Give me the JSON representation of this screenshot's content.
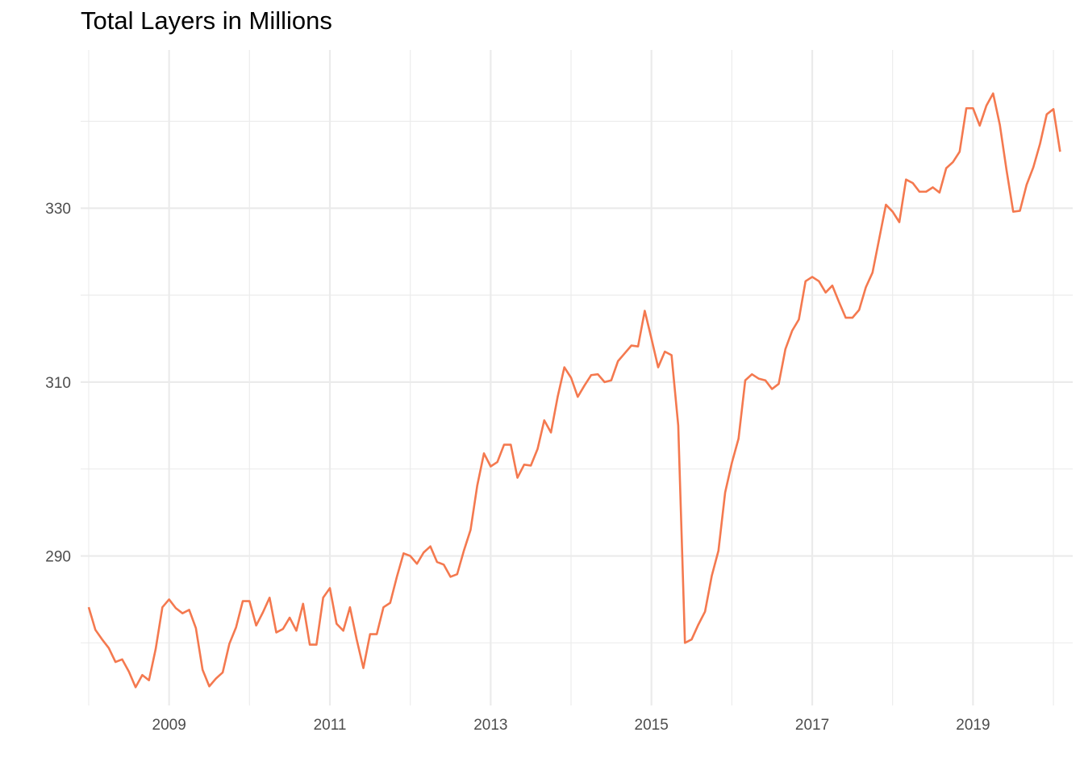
{
  "chart_data": {
    "type": "line",
    "title": "Total Layers in Millions",
    "xlabel": "",
    "ylabel": "",
    "x_start": "2008-01",
    "x_step": "month",
    "xlim": [
      2007.9,
      2020.24
    ],
    "ylim": [
      272.8,
      348.2
    ],
    "x_ticks": [
      {
        "value": 2009,
        "label": "2009"
      },
      {
        "value": 2011,
        "label": "2011"
      },
      {
        "value": 2013,
        "label": "2013"
      },
      {
        "value": 2015,
        "label": "2015"
      },
      {
        "value": 2017,
        "label": "2017"
      },
      {
        "value": 2019,
        "label": "2019"
      }
    ],
    "x_minor_ticks": [
      2008,
      2010,
      2012,
      2014,
      2016,
      2018,
      2020
    ],
    "y_ticks": [
      {
        "value": 290,
        "label": "290"
      },
      {
        "value": 310,
        "label": "310"
      },
      {
        "value": 330,
        "label": "330"
      }
    ],
    "y_minor_ticks": [
      280,
      300,
      320,
      340
    ],
    "grid": true,
    "legend": "none",
    "series": [
      {
        "color": "#f4794f",
        "values": [
          284.1,
          281.5,
          280.4,
          279.4,
          277.8,
          278.1,
          276.7,
          274.9,
          276.3,
          275.7,
          279.3,
          284.1,
          285.0,
          284.0,
          283.4,
          283.8,
          281.7,
          276.9,
          275.0,
          275.9,
          276.6,
          279.9,
          281.8,
          284.8,
          284.8,
          282.0,
          283.5,
          285.2,
          281.2,
          281.6,
          282.9,
          281.4,
          284.5,
          279.8,
          279.8,
          285.2,
          286.3,
          282.2,
          281.4,
          284.1,
          280.4,
          277.1,
          281.0,
          281.0,
          284.1,
          284.6,
          287.6,
          290.3,
          290.0,
          289.1,
          290.4,
          291.1,
          289.3,
          289.0,
          287.6,
          287.9,
          290.6,
          293.0,
          298.1,
          301.8,
          300.3,
          300.8,
          302.8,
          302.8,
          299.0,
          300.5,
          300.4,
          302.3,
          305.6,
          304.2,
          308.3,
          311.7,
          310.5,
          308.3,
          309.6,
          310.8,
          310.9,
          310.0,
          310.2,
          312.4,
          313.3,
          314.2,
          314.1,
          318.2,
          315.0,
          311.7,
          313.5,
          313.1,
          305.0,
          280.0,
          280.4,
          282.1,
          283.6,
          287.7,
          290.6,
          297.3,
          300.7,
          303.5,
          310.2,
          310.9,
          310.4,
          310.2,
          309.2,
          309.8,
          313.8,
          315.9,
          317.2,
          321.6,
          322.1,
          321.6,
          320.3,
          321.1,
          319.2,
          317.4,
          317.4,
          318.3,
          320.9,
          322.6,
          326.5,
          330.4,
          329.6,
          328.4,
          333.3,
          332.9,
          331.9,
          331.9,
          332.4,
          331.8,
          334.6,
          335.3,
          336.5,
          341.5,
          341.5,
          339.5,
          341.8,
          343.2,
          339.6,
          334.4,
          329.6,
          329.7,
          332.7,
          334.7,
          337.4,
          340.8,
          341.4,
          336.5
        ]
      }
    ]
  }
}
